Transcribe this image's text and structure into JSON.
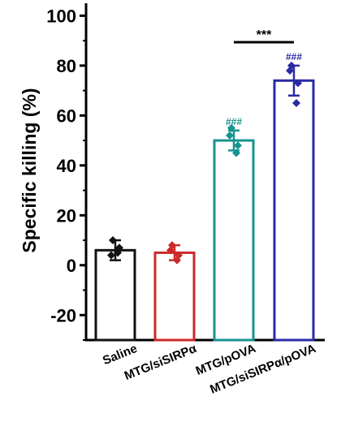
{
  "chart_data": {
    "type": "bar",
    "title": "",
    "xlabel": "",
    "ylabel": "Specific killing (%)",
    "ylim": [
      -30,
      105
    ],
    "yticks": [
      -20,
      0,
      20,
      40,
      60,
      80,
      100
    ],
    "categories": [
      "Saline",
      "MTG/siSIRPα",
      "MTG/pOVA",
      "MTG/siSIRPα/pOVA"
    ],
    "values": [
      6,
      5,
      50,
      74
    ],
    "errors": [
      4,
      3,
      4,
      6
    ],
    "colors": [
      "#111111",
      "#cc2a2a",
      "#17938f",
      "#2a2aa6"
    ],
    "points": [
      [
        10,
        5,
        4,
        7
      ],
      [
        8,
        2,
        6,
        4
      ],
      [
        55,
        45,
        52,
        48
      ],
      [
        80,
        65,
        78,
        73
      ]
    ],
    "bar_annotations": [
      "",
      "",
      "###",
      "###"
    ],
    "comparisons": [
      {
        "from": 2,
        "to": 3,
        "label": "***"
      }
    ]
  }
}
